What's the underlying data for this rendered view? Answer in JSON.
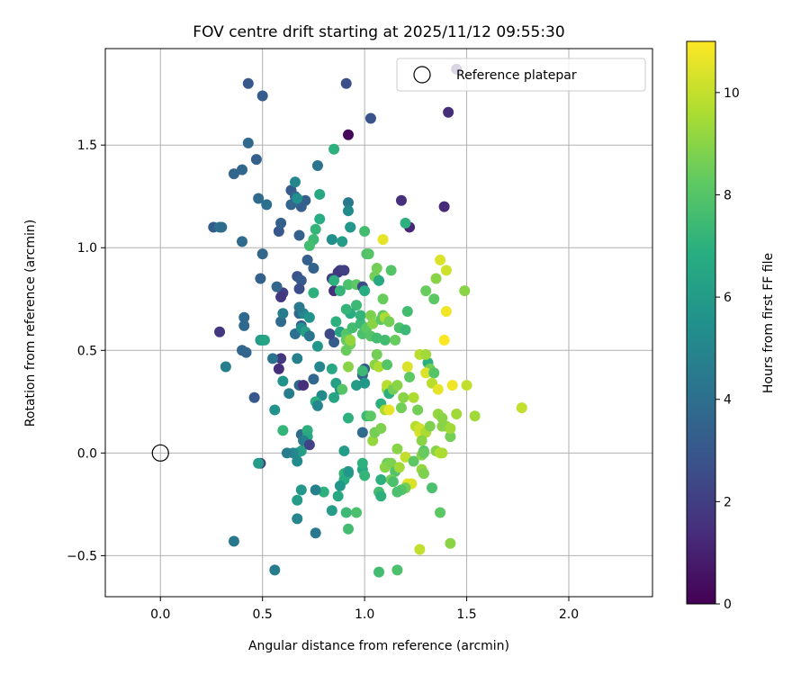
{
  "chart_data": {
    "type": "scatter",
    "title": "FOV centre drift starting at 2025/11/12 09:55:30",
    "xlabel": "Angular distance from reference (arcmin)",
    "ylabel": "Rotation from reference (arcmin)",
    "xlim": [
      -0.27,
      2.41
    ],
    "ylim": [
      -0.7,
      1.97
    ],
    "xticks": [
      0.0,
      0.5,
      1.0,
      1.5,
      2.0
    ],
    "xtick_labels": [
      "0.0",
      "0.5",
      "1.0",
      "1.5",
      "2.0"
    ],
    "yticks": [
      -0.5,
      0.0,
      0.5,
      1.0,
      1.5
    ],
    "ytick_labels": [
      "−0.5",
      "0.0",
      "0.5",
      "1.0",
      "1.5"
    ],
    "grid": true,
    "legend": {
      "label": "Reference platepar",
      "placement": "top-right"
    },
    "reference_point": {
      "x": 0.0,
      "y": 0.0
    },
    "colorbar": {
      "label": "Hours from first FF file",
      "colormap": "viridis",
      "range": [
        0,
        11
      ],
      "ticks": [
        0,
        2,
        4,
        6,
        8,
        10
      ],
      "tick_labels": [
        "0",
        "2",
        "4",
        "6",
        "8",
        "10"
      ]
    },
    "points": [
      [
        0.92,
        1.55,
        0.2
      ],
      [
        1.45,
        1.87,
        1.6
      ],
      [
        1.41,
        1.66,
        1.4
      ],
      [
        1.39,
        1.2,
        1.3
      ],
      [
        1.18,
        1.23,
        1.5
      ],
      [
        1.22,
        1.1,
        1.2
      ],
      [
        0.91,
        1.8,
        2.6
      ],
      [
        0.43,
        1.8,
        3.0
      ],
      [
        0.5,
        1.74,
        3.2
      ],
      [
        1.03,
        1.63,
        2.8
      ],
      [
        0.43,
        1.51,
        3.7
      ],
      [
        0.47,
        1.43,
        3.4
      ],
      [
        0.4,
        1.38,
        3.6
      ],
      [
        0.36,
        1.36,
        3.6
      ],
      [
        0.48,
        1.24,
        3.8
      ],
      [
        0.52,
        1.21,
        4.0
      ],
      [
        0.26,
        1.1,
        3.2
      ],
      [
        0.29,
        1.1,
        4.2
      ],
      [
        0.3,
        1.1,
        3.9
      ],
      [
        0.4,
        1.03,
        3.8
      ],
      [
        0.5,
        0.97,
        3.6
      ],
      [
        0.58,
        1.08,
        3.0
      ],
      [
        0.59,
        1.12,
        3.4
      ],
      [
        0.64,
        1.28,
        3.2
      ],
      [
        0.66,
        1.25,
        3.7
      ],
      [
        0.71,
        1.23,
        3.4
      ],
      [
        0.69,
        1.2,
        3.3
      ],
      [
        0.64,
        1.21,
        3.6
      ],
      [
        0.68,
        1.06,
        3.4
      ],
      [
        0.72,
        0.94,
        3.3
      ],
      [
        0.75,
        0.9,
        3.5
      ],
      [
        0.77,
        1.4,
        4.2
      ],
      [
        0.66,
        1.32,
        5.0
      ],
      [
        0.67,
        1.24,
        5.4
      ],
      [
        0.78,
        1.26,
        6.6
      ],
      [
        0.85,
        1.48,
        7.0
      ],
      [
        0.92,
        1.22,
        4.4
      ],
      [
        0.93,
        1.1,
        4.0
      ],
      [
        0.92,
        1.18,
        5.2
      ],
      [
        0.78,
        1.14,
        6.8
      ],
      [
        0.76,
        1.09,
        7.2
      ],
      [
        0.75,
        1.04,
        7.4
      ],
      [
        0.73,
        1.01,
        7.6
      ],
      [
        0.84,
        1.04,
        5.4
      ],
      [
        0.89,
        1.03,
        6.0
      ],
      [
        0.93,
        1.1,
        5.8
      ],
      [
        1.0,
        1.08,
        7.6
      ],
      [
        1.01,
        0.97,
        7.8
      ],
      [
        1.09,
        1.04,
        10.6
      ],
      [
        1.2,
        1.12,
        7.0
      ],
      [
        0.88,
        0.89,
        2.2
      ],
      [
        0.87,
        0.88,
        1.8
      ],
      [
        0.84,
        0.85,
        2.0
      ],
      [
        0.85,
        0.79,
        1.5
      ],
      [
        0.85,
        0.84,
        7.0
      ],
      [
        0.88,
        0.79,
        7.2
      ],
      [
        0.92,
        0.82,
        7.8
      ],
      [
        0.96,
        0.82,
        8.2
      ],
      [
        0.99,
        0.81,
        2.4
      ],
      [
        1.0,
        0.79,
        6.8
      ],
      [
        1.05,
        0.86,
        8.6
      ],
      [
        1.07,
        0.84,
        6.6
      ],
      [
        1.06,
        0.9,
        8.6
      ],
      [
        1.02,
        0.97,
        8.0
      ],
      [
        0.75,
        0.78,
        7.0
      ],
      [
        0.67,
        0.86,
        2.8
      ],
      [
        0.69,
        0.84,
        3.1
      ],
      [
        0.68,
        0.8,
        2.6
      ],
      [
        0.6,
        0.78,
        2.0
      ],
      [
        0.59,
        0.76,
        1.8
      ],
      [
        0.57,
        0.81,
        3.6
      ],
      [
        0.49,
        0.85,
        3.4
      ],
      [
        0.41,
        0.66,
        3.8
      ],
      [
        0.41,
        0.62,
        3.7
      ],
      [
        0.4,
        0.5,
        3.6
      ],
      [
        0.42,
        0.49,
        3.6
      ],
      [
        0.29,
        0.59,
        1.8
      ],
      [
        0.32,
        0.42,
        4.6
      ],
      [
        0.46,
        0.27,
        3.0
      ],
      [
        0.5,
        0.55,
        5.6
      ],
      [
        0.59,
        0.64,
        3.8
      ],
      [
        0.6,
        0.68,
        4.6
      ],
      [
        0.66,
        0.58,
        4.0
      ],
      [
        0.68,
        0.68,
        3.6
      ],
      [
        0.69,
        0.62,
        3.0
      ],
      [
        0.7,
        0.68,
        5.0
      ],
      [
        0.69,
        0.61,
        5.4
      ],
      [
        0.68,
        0.71,
        4.4
      ],
      [
        0.71,
        0.59,
        6.2
      ],
      [
        0.77,
        0.52,
        5.8
      ],
      [
        0.73,
        0.66,
        5.6
      ],
      [
        0.73,
        0.57,
        4.2
      ],
      [
        0.59,
        0.46,
        1.8
      ],
      [
        0.58,
        0.41,
        1.5
      ],
      [
        0.55,
        0.46,
        4.2
      ],
      [
        0.6,
        0.35,
        5.6
      ],
      [
        0.63,
        0.29,
        4.6
      ],
      [
        0.68,
        0.33,
        3.6
      ],
      [
        0.7,
        0.33,
        1.5
      ],
      [
        0.67,
        0.46,
        4.8
      ],
      [
        0.78,
        0.42,
        5.0
      ],
      [
        0.75,
        0.36,
        3.6
      ],
      [
        0.79,
        0.28,
        5.2
      ],
      [
        0.76,
        0.25,
        6.8
      ],
      [
        0.77,
        0.23,
        5.0
      ],
      [
        0.85,
        0.54,
        3.2
      ],
      [
        0.83,
        0.58,
        2.4
      ],
      [
        0.84,
        0.41,
        6.6
      ],
      [
        0.88,
        0.59,
        6.4
      ],
      [
        0.86,
        0.64,
        7.0
      ],
      [
        0.91,
        0.58,
        8.0
      ],
      [
        0.93,
        0.53,
        8.6
      ],
      [
        0.91,
        0.55,
        8.4
      ],
      [
        0.91,
        0.5,
        8.4
      ],
      [
        0.93,
        0.55,
        9.2
      ],
      [
        0.92,
        0.42,
        9.0
      ],
      [
        0.94,
        0.61,
        7.6
      ],
      [
        0.93,
        0.68,
        6.8
      ],
      [
        0.91,
        0.7,
        7.2
      ],
      [
        0.96,
        0.72,
        7.4
      ],
      [
        0.98,
        0.63,
        7.4
      ],
      [
        0.98,
        0.67,
        7.2
      ],
      [
        0.99,
        0.58,
        7.8
      ],
      [
        1.01,
        0.61,
        8.2
      ],
      [
        1.03,
        0.57,
        8.0
      ],
      [
        1.03,
        0.67,
        8.8
      ],
      [
        1.04,
        0.63,
        9.0
      ],
      [
        1.06,
        0.56,
        7.6
      ],
      [
        1.08,
        0.65,
        8.2
      ],
      [
        1.09,
        0.67,
        8.2
      ],
      [
        1.1,
        0.55,
        7.6
      ],
      [
        1.1,
        0.66,
        9.6
      ],
      [
        1.12,
        0.64,
        8.6
      ],
      [
        1.15,
        0.55,
        8.4
      ],
      [
        1.17,
        0.61,
        7.8
      ],
      [
        1.2,
        0.6,
        7.4
      ],
      [
        1.21,
        0.69,
        7.6
      ],
      [
        1.09,
        0.75,
        8.4
      ],
      [
        1.13,
        0.89,
        8.0
      ],
      [
        1.3,
        0.79,
        8.4
      ],
      [
        1.34,
        0.75,
        8.2
      ],
      [
        1.35,
        0.85,
        9.0
      ],
      [
        1.37,
        0.94,
        10.4
      ],
      [
        1.4,
        0.89,
        10.2
      ],
      [
        1.4,
        0.69,
        10.8
      ],
      [
        1.39,
        0.55,
        11.0
      ],
      [
        1.49,
        0.79,
        9.0
      ],
      [
        0.9,
        0.89,
        2.0
      ],
      [
        0.96,
        0.33,
        6.0
      ],
      [
        0.88,
        0.31,
        5.0
      ],
      [
        0.86,
        0.34,
        6.2
      ],
      [
        0.85,
        0.27,
        6.4
      ],
      [
        0.89,
        0.31,
        8.0
      ],
      [
        0.99,
        0.38,
        3.6
      ],
      [
        1.0,
        0.41,
        3.2
      ],
      [
        0.99,
        0.4,
        7.4
      ],
      [
        1.0,
        0.34,
        5.8
      ],
      [
        1.05,
        0.43,
        9.0
      ],
      [
        1.06,
        0.48,
        8.6
      ],
      [
        1.07,
        0.42,
        9.6
      ],
      [
        1.08,
        0.24,
        7.0
      ],
      [
        1.11,
        0.31,
        9.2
      ],
      [
        1.11,
        0.33,
        9.8
      ],
      [
        1.11,
        0.43,
        8.0
      ],
      [
        1.12,
        0.29,
        7.0
      ],
      [
        1.14,
        0.31,
        8.6
      ],
      [
        1.16,
        0.33,
        9.0
      ],
      [
        1.22,
        0.37,
        8.2
      ],
      [
        1.21,
        0.42,
        10.4
      ],
      [
        1.24,
        0.27,
        9.6
      ],
      [
        1.27,
        0.48,
        9.8
      ],
      [
        1.31,
        0.44,
        7.0
      ],
      [
        1.3,
        0.48,
        9.4
      ],
      [
        1.32,
        0.41,
        8.6
      ],
      [
        1.3,
        0.39,
        10.4
      ],
      [
        1.34,
        0.39,
        8.0
      ],
      [
        1.33,
        0.34,
        9.8
      ],
      [
        1.36,
        0.31,
        10.6
      ],
      [
        1.43,
        0.33,
        10.8
      ],
      [
        1.5,
        0.33,
        10.0
      ],
      [
        1.36,
        0.19,
        9.2
      ],
      [
        1.38,
        0.17,
        9.0
      ],
      [
        1.4,
        0.13,
        9.2
      ],
      [
        1.38,
        0.13,
        9.0
      ],
      [
        1.42,
        0.08,
        8.6
      ],
      [
        1.42,
        0.12,
        9.4
      ],
      [
        1.45,
        0.19,
        9.4
      ],
      [
        1.54,
        0.18,
        9.4
      ],
      [
        1.77,
        0.22,
        10.0
      ],
      [
        0.49,
        0.55,
        6.0
      ],
      [
        0.51,
        0.55,
        6.4
      ],
      [
        0.56,
        0.21,
        5.6
      ],
      [
        0.6,
        0.11,
        7.2
      ],
      [
        0.69,
        0.01,
        6.2
      ],
      [
        0.67,
        0.0,
        6.0
      ],
      [
        0.65,
        0.0,
        5.0
      ],
      [
        0.62,
        0.0,
        4.6
      ],
      [
        0.69,
        0.09,
        3.8
      ],
      [
        0.72,
        0.11,
        7.0
      ],
      [
        0.72,
        0.08,
        6.6
      ],
      [
        0.7,
        0.06,
        4.6
      ],
      [
        0.73,
        0.04,
        2.2
      ],
      [
        0.92,
        0.17,
        7.0
      ],
      [
        1.01,
        0.18,
        7.4
      ],
      [
        1.03,
        0.18,
        8.2
      ],
      [
        0.99,
        0.1,
        3.8
      ],
      [
        1.04,
        0.06,
        9.2
      ],
      [
        1.05,
        0.1,
        8.6
      ],
      [
        1.08,
        0.12,
        8.8
      ],
      [
        1.1,
        0.21,
        9.6
      ],
      [
        1.12,
        0.21,
        10.6
      ],
      [
        1.18,
        0.22,
        8.6
      ],
      [
        1.19,
        0.27,
        9.0
      ],
      [
        1.26,
        0.21,
        8.6
      ],
      [
        1.25,
        0.13,
        9.8
      ],
      [
        1.27,
        0.1,
        10.4
      ],
      [
        1.27,
        0.12,
        10.2
      ],
      [
        1.3,
        0.1,
        9.6
      ],
      [
        1.32,
        0.13,
        8.8
      ],
      [
        1.28,
        0.06,
        9.0
      ],
      [
        1.29,
        0.01,
        8.0
      ],
      [
        1.35,
        0.01,
        9.0
      ],
      [
        1.37,
        0.0,
        9.8
      ],
      [
        1.38,
        0.0,
        9.6
      ],
      [
        1.16,
        0.02,
        9.0
      ],
      [
        1.12,
        -0.05,
        8.2
      ],
      [
        1.11,
        -0.05,
        8.4
      ],
      [
        1.1,
        -0.07,
        9.0
      ],
      [
        1.13,
        -0.05,
        8.8
      ],
      [
        1.15,
        -0.09,
        8.0
      ],
      [
        1.17,
        -0.07,
        9.4
      ],
      [
        1.2,
        -0.02,
        10.0
      ],
      [
        1.24,
        -0.04,
        8.2
      ],
      [
        1.28,
        -0.08,
        9.2
      ],
      [
        1.29,
        -0.1,
        8.8
      ],
      [
        1.21,
        -0.15,
        10.6
      ],
      [
        1.23,
        -0.15,
        10.4
      ],
      [
        1.2,
        -0.17,
        8.6
      ],
      [
        1.18,
        -0.18,
        8.0
      ],
      [
        1.16,
        -0.19,
        7.8
      ],
      [
        1.13,
        -0.13,
        8.6
      ],
      [
        1.14,
        -0.14,
        7.8
      ],
      [
        1.08,
        -0.13,
        7.0
      ],
      [
        1.07,
        -0.19,
        7.6
      ],
      [
        1.08,
        -0.21,
        7.0
      ],
      [
        0.99,
        -0.08,
        6.6
      ],
      [
        1.0,
        -0.11,
        7.2
      ],
      [
        0.99,
        -0.05,
        7.0
      ],
      [
        0.92,
        -0.1,
        6.4
      ],
      [
        0.9,
        -0.1,
        7.2
      ],
      [
        0.9,
        -0.13,
        6.8
      ],
      [
        0.88,
        -0.16,
        5.8
      ],
      [
        0.87,
        -0.21,
        6.6
      ],
      [
        0.91,
        -0.29,
        7.4
      ],
      [
        0.96,
        -0.29,
        7.8
      ],
      [
        0.92,
        -0.37,
        7.6
      ],
      [
        0.84,
        -0.28,
        6.0
      ],
      [
        0.8,
        -0.19,
        7.0
      ],
      [
        0.76,
        -0.18,
        4.8
      ],
      [
        0.69,
        -0.18,
        5.8
      ],
      [
        0.67,
        -0.23,
        6.0
      ],
      [
        0.67,
        -0.32,
        5.0
      ],
      [
        0.67,
        -0.04,
        5.2
      ],
      [
        0.76,
        -0.39,
        4.4
      ],
      [
        0.9,
        0.01,
        6.0
      ],
      [
        0.92,
        -0.09,
        5.8
      ],
      [
        0.49,
        -0.05,
        2.2
      ],
      [
        0.48,
        -0.05,
        6.0
      ],
      [
        0.36,
        -0.43,
        4.4
      ],
      [
        0.56,
        -0.57,
        4.6
      ],
      [
        1.07,
        -0.58,
        7.6
      ],
      [
        1.16,
        -0.57,
        7.8
      ],
      [
        1.27,
        -0.47,
        10.0
      ],
      [
        1.42,
        -0.44,
        9.0
      ],
      [
        1.28,
        -0.01,
        9.0
      ],
      [
        1.29,
        0.0,
        8.4
      ],
      [
        1.33,
        -0.17,
        7.8
      ],
      [
        1.37,
        -0.29,
        8.2
      ]
    ]
  }
}
